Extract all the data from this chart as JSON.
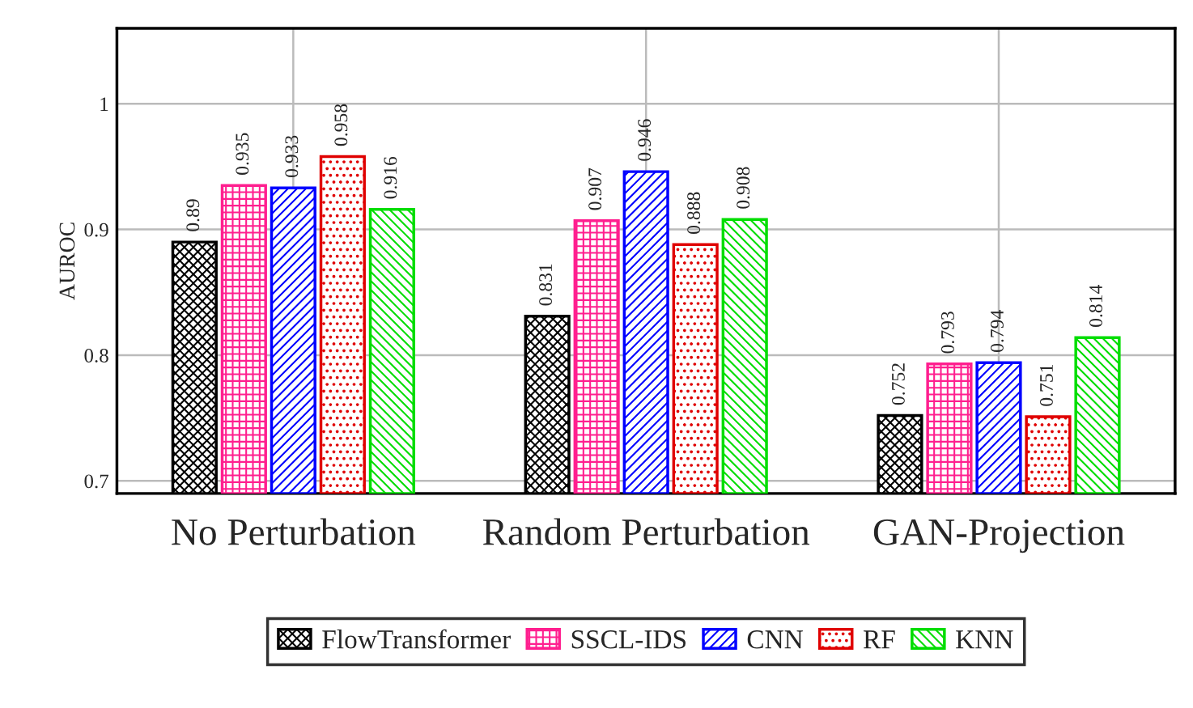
{
  "chart_data": {
    "type": "bar",
    "ylabel": "AUROC",
    "categories": [
      "No Perturbation",
      "Random Perturbation",
      "GAN-Projection"
    ],
    "series": [
      {
        "name": "FlowTransformer",
        "color": "#000000",
        "values": [
          0.89,
          0.831,
          0.752
        ]
      },
      {
        "name": "SSCL-IDS",
        "color": "#ff1f8f",
        "values": [
          0.935,
          0.907,
          0.793
        ]
      },
      {
        "name": "CNN",
        "color": "#0000ff",
        "values": [
          0.933,
          0.946,
          0.794
        ]
      },
      {
        "name": "RF",
        "color": "#e00000",
        "values": [
          0.958,
          0.888,
          0.751
        ]
      },
      {
        "name": "KNN",
        "color": "#00dd00",
        "values": [
          0.916,
          0.908,
          0.814
        ]
      }
    ],
    "ylim": [
      0.69,
      1.06
    ],
    "yticks": [
      0.7,
      0.8,
      0.9,
      1
    ],
    "grid": true,
    "legend": "bottom",
    "data_labels": true
  }
}
